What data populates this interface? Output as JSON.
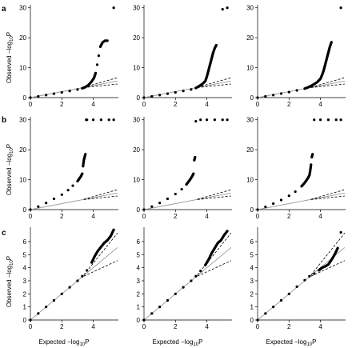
{
  "chart_data": [
    {
      "panel": "a",
      "row": 0,
      "col": 0,
      "type": "scatter",
      "xlim": [
        0,
        5.6
      ],
      "ylim": [
        0,
        31
      ],
      "xticks": [
        0,
        2,
        4
      ],
      "yticks": [
        0,
        10,
        20,
        30
      ],
      "series": [
        {
          "x": [
            0,
            0.5,
            1,
            1.5,
            2,
            2.5,
            3,
            3.3,
            3.5,
            3.7,
            3.9,
            4.05,
            4.15,
            4.25,
            4.35,
            4.45,
            4.6,
            4.75,
            4.9,
            5.3
          ],
          "y": [
            0,
            0.4,
            0.85,
            1.3,
            1.75,
            2.2,
            2.7,
            3.1,
            3.5,
            4.2,
            5.4,
            6.6,
            8.2,
            11,
            14,
            17,
            18.5,
            19,
            19,
            30
          ]
        }
      ]
    },
    {
      "panel": "a",
      "row": 0,
      "col": 1,
      "type": "scatter",
      "xlim": [
        0,
        5.6
      ],
      "ylim": [
        0,
        31
      ],
      "xticks": [
        0,
        2,
        4
      ],
      "yticks": [
        0,
        10,
        20,
        30
      ],
      "series": [
        {
          "x": [
            0,
            0.5,
            1,
            1.5,
            2,
            2.5,
            3,
            3.3,
            3.5,
            3.7,
            3.9,
            4.0,
            4.1,
            4.2,
            4.3,
            4.4,
            4.5,
            4.6,
            5.0,
            5.3
          ],
          "y": [
            0,
            0.4,
            0.85,
            1.3,
            1.75,
            2.2,
            2.7,
            3.2,
            3.8,
            4.5,
            5.5,
            7,
            9,
            11,
            13,
            15,
            16.5,
            17.5,
            29.5,
            30
          ]
        }
      ]
    },
    {
      "panel": "a",
      "row": 0,
      "col": 2,
      "type": "scatter",
      "xlim": [
        0,
        5.6
      ],
      "ylim": [
        0,
        31
      ],
      "xticks": [
        0,
        2,
        4
      ],
      "yticks": [
        0,
        10,
        20,
        30
      ],
      "series": [
        {
          "x": [
            0,
            0.5,
            1,
            1.5,
            2,
            2.5,
            3,
            3.2,
            3.4,
            3.6,
            3.8,
            4.0,
            4.1,
            4.2,
            4.3,
            4.4,
            4.5,
            4.6,
            4.7,
            5.3
          ],
          "y": [
            0,
            0.4,
            0.85,
            1.35,
            1.85,
            2.4,
            3,
            3.4,
            3.9,
            4.5,
            5.2,
            6.3,
            7.5,
            9,
            11,
            13,
            15,
            17,
            18.5,
            30
          ]
        }
      ]
    },
    {
      "panel": "b",
      "row": 1,
      "col": 0,
      "type": "scatter",
      "xlim": [
        0,
        5.6
      ],
      "ylim": [
        0,
        31
      ],
      "xticks": [
        0,
        2,
        4
      ],
      "yticks": [
        0,
        10,
        20,
        30
      ],
      "series": [
        {
          "x": [
            0,
            0.5,
            1,
            1.5,
            2,
            2.4,
            2.7,
            3.0,
            3.2,
            3.3,
            3.35,
            3.4,
            3.45,
            3.5,
            3.55,
            3.6,
            4.0,
            4.5,
            5.0,
            5.3
          ],
          "y": [
            0,
            1,
            2.2,
            3.6,
            5,
            6.5,
            8,
            9.5,
            11,
            12,
            14.5,
            16.5,
            17.5,
            18.5,
            30,
            30,
            30,
            30,
            30,
            30
          ]
        }
      ]
    },
    {
      "panel": "b",
      "row": 1,
      "col": 1,
      "type": "scatter",
      "xlim": [
        0,
        5.6
      ],
      "ylim": [
        0,
        31
      ],
      "xticks": [
        0,
        2,
        4
      ],
      "yticks": [
        0,
        10,
        20,
        30
      ],
      "series": [
        {
          "x": [
            0,
            0.5,
            1,
            1.5,
            2,
            2.4,
            2.7,
            2.9,
            3.05,
            3.15,
            3.2,
            3.25,
            3.3,
            3.6,
            4.0,
            4.5,
            5.0,
            5.3
          ],
          "y": [
            0,
            1,
            2.2,
            3.6,
            5.2,
            6.8,
            8.4,
            9.8,
            11,
            12,
            16.5,
            17.5,
            29.5,
            30,
            30,
            30,
            30,
            30
          ]
        }
      ]
    },
    {
      "panel": "b",
      "row": 1,
      "col": 2,
      "type": "scatter",
      "xlim": [
        0,
        5.6
      ],
      "ylim": [
        0,
        31
      ],
      "xticks": [
        0,
        2,
        4
      ],
      "yticks": [
        0,
        10,
        20,
        30
      ],
      "series": [
        {
          "x": [
            0,
            0.5,
            1,
            1.5,
            2,
            2.4,
            2.8,
            3.0,
            3.2,
            3.3,
            3.35,
            3.4,
            3.45,
            3.5,
            3.6,
            4.0,
            4.5,
            5.0,
            5.3
          ],
          "y": [
            0,
            0.9,
            2,
            3.2,
            4.6,
            6,
            7.8,
            9,
            10.5,
            11.5,
            13,
            15,
            17.5,
            18.5,
            30,
            30,
            30,
            30,
            30
          ]
        }
      ]
    },
    {
      "panel": "c",
      "row": 2,
      "col": 0,
      "type": "scatter",
      "xlim": [
        0,
        5.6
      ],
      "ylim": [
        0,
        7.1
      ],
      "xticks": [
        0,
        2,
        4
      ],
      "yticks": [
        0,
        1,
        2,
        3,
        4,
        5,
        6
      ],
      "series": [
        {
          "x": [
            0,
            0.5,
            1,
            1.5,
            2,
            2.5,
            3,
            3.3,
            3.6,
            3.9,
            4.1,
            4.3,
            4.5,
            4.7,
            4.9,
            5.1,
            5.3
          ],
          "y": [
            0,
            0.5,
            1,
            1.5,
            2,
            2.5,
            3,
            3.35,
            3.8,
            4.4,
            4.9,
            5.3,
            5.6,
            5.9,
            6.1,
            6.4,
            6.9
          ]
        }
      ]
    },
    {
      "panel": "c",
      "row": 2,
      "col": 1,
      "type": "scatter",
      "xlim": [
        0,
        5.6
      ],
      "ylim": [
        0,
        7.1
      ],
      "xticks": [
        0,
        2,
        4
      ],
      "yticks": [
        0,
        1,
        2,
        3,
        4,
        5,
        6
      ],
      "series": [
        {
          "x": [
            0,
            0.5,
            1,
            1.5,
            2,
            2.5,
            3,
            3.3,
            3.6,
            3.9,
            4.1,
            4.3,
            4.5,
            4.7,
            4.9,
            5.1,
            5.3
          ],
          "y": [
            0,
            0.5,
            1,
            1.5,
            2,
            2.5,
            3,
            3.35,
            3.75,
            4.2,
            4.6,
            5.1,
            5.5,
            5.9,
            6.1,
            6.5,
            6.8
          ]
        }
      ]
    },
    {
      "panel": "c",
      "row": 2,
      "col": 2,
      "type": "scatter",
      "xlim": [
        0,
        5.6
      ],
      "ylim": [
        0,
        7.1
      ],
      "xticks": [
        0,
        2,
        4
      ],
      "yticks": [
        0,
        1,
        2,
        3,
        4,
        5,
        6
      ],
      "series": [
        {
          "x": [
            0,
            0.5,
            1,
            1.5,
            2,
            2.5,
            3,
            3.3,
            3.6,
            3.9,
            4.1,
            4.3,
            4.5,
            4.7,
            4.9,
            5.1,
            5.3
          ],
          "y": [
            0,
            0.5,
            1,
            1.5,
            2,
            2.55,
            3.05,
            3.35,
            3.55,
            3.8,
            4.0,
            4.1,
            4.25,
            4.6,
            5.0,
            5.5,
            6.7
          ]
        }
      ]
    }
  ],
  "labels": {
    "panel_a": "a",
    "panel_b": "b",
    "panel_c": "c",
    "ylabel_a": "Observed −log",
    "ylabel_b": "Observed −log",
    "ylabel_c": "Observed −log",
    "xlabel_c1": "Expected −log",
    "xlabel_c2": "Expected −log",
    "xlabel_c3": "Expected −log",
    "sub10": "10",
    "suffixP": "P"
  },
  "colors": {
    "points": "#000000",
    "reference": "#999999",
    "confidence": "#000000"
  }
}
